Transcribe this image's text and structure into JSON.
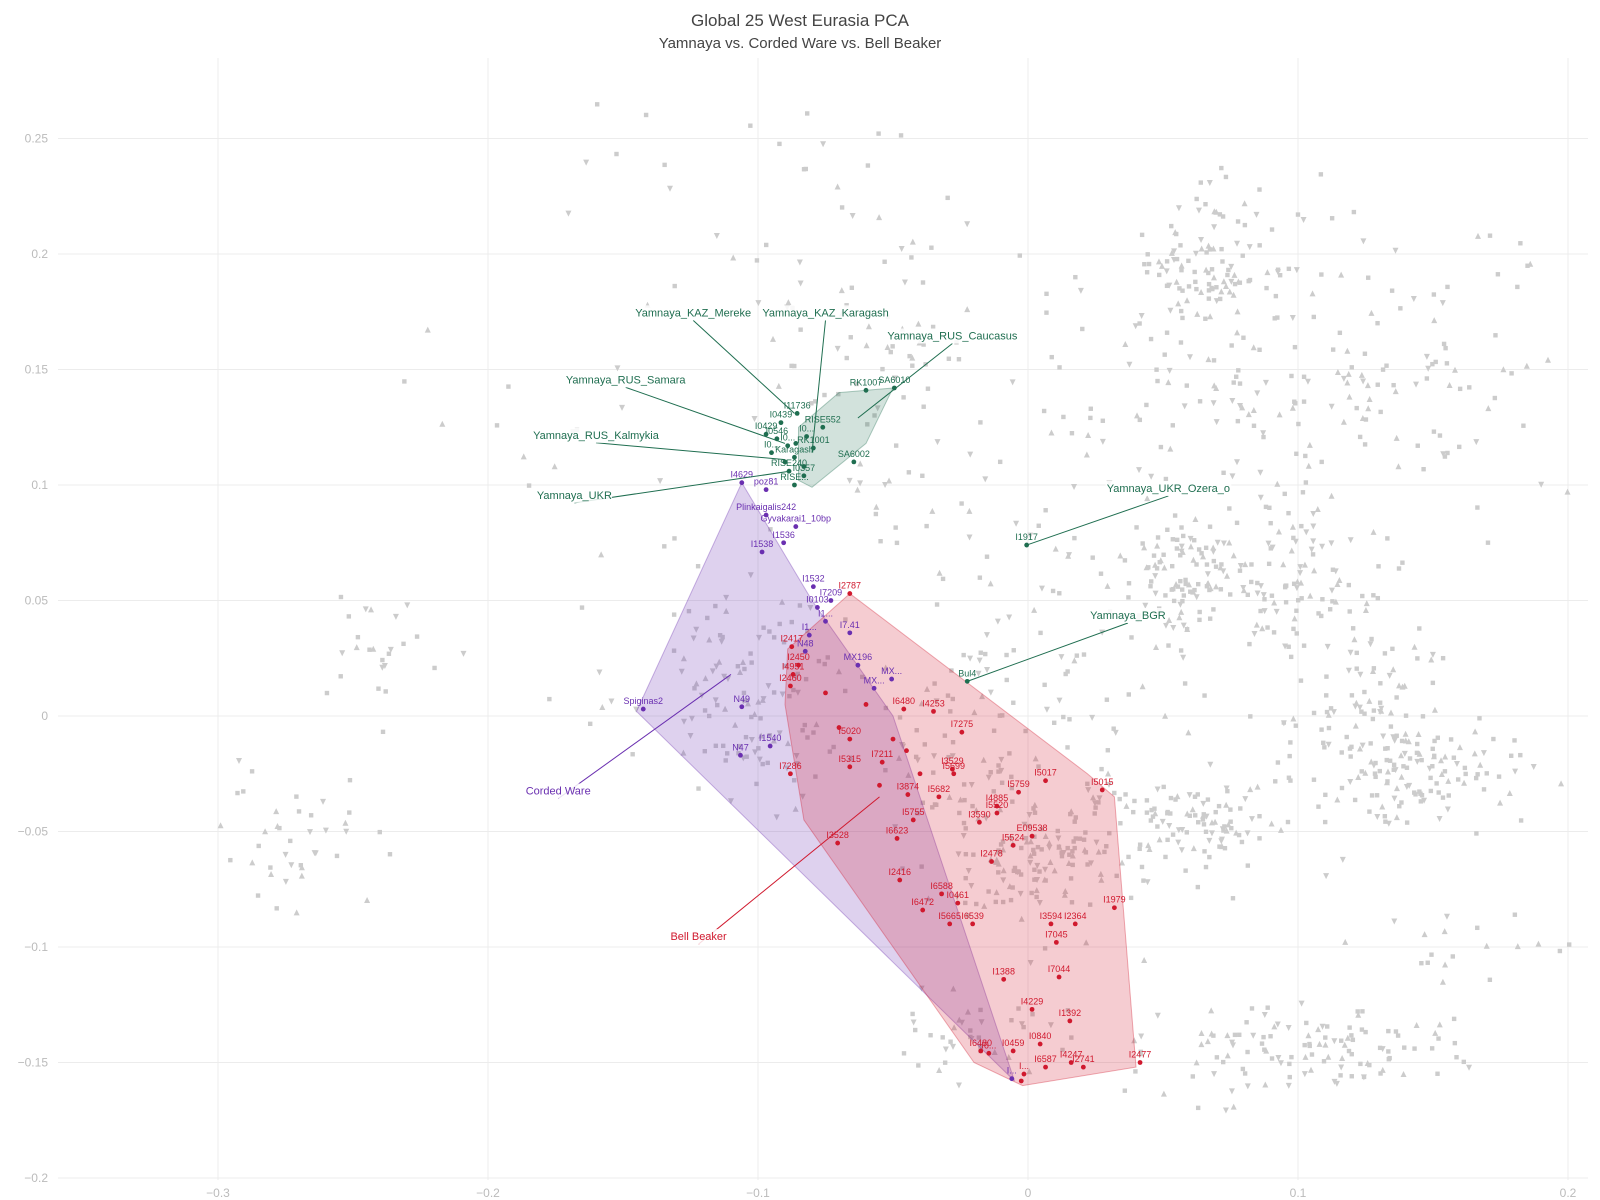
{
  "chart_data": {
    "type": "scatter",
    "title": "Global 25 West Eurasia PCA",
    "subtitle": "Yamnaya vs. Corded Ware vs. Bell Beaker",
    "xlabel": "",
    "ylabel": "",
    "xlim": [
      -0.37,
      0.21
    ],
    "ylim": [
      -0.2,
      0.285
    ],
    "x_ticks": [
      {
        "value": -0.3,
        "label": "−0.3"
      },
      {
        "value": -0.2,
        "label": "−0.2"
      },
      {
        "value": -0.1,
        "label": "−0.1"
      },
      {
        "value": 0,
        "label": "0"
      },
      {
        "value": 0.1,
        "label": "0.1"
      },
      {
        "value": 0.2,
        "label": "0.2"
      }
    ],
    "y_ticks": [
      {
        "value": 0.25,
        "label": "0.25"
      },
      {
        "value": 0.2,
        "label": "0.2"
      },
      {
        "value": 0.15,
        "label": "0.15"
      },
      {
        "value": 0.1,
        "label": "0.1"
      },
      {
        "value": 0.05,
        "label": "0.05"
      },
      {
        "value": 0,
        "label": "0"
      },
      {
        "value": -0.05,
        "label": "−0.05"
      },
      {
        "value": -0.1,
        "label": "−0.1"
      },
      {
        "value": -0.15,
        "label": "−0.15"
      },
      {
        "value": -0.2,
        "label": "−0.2"
      }
    ],
    "grid": true,
    "legend": "none",
    "colors": {
      "yamnaya": "#1f6e50",
      "corded_ware": "#6a2fb0",
      "bell_beaker": "#d0192e",
      "background": "#cccccc"
    },
    "background_clusters": [
      {
        "cx": 0.063,
        "cy": 0.19,
        "sx": 0.012,
        "sy": 0.013,
        "n": 80
      },
      {
        "cx": 0.12,
        "cy": 0.15,
        "sx": 0.03,
        "sy": 0.03,
        "n": 90
      },
      {
        "cx": 0.055,
        "cy": 0.14,
        "sx": 0.03,
        "sy": 0.03,
        "n": 70
      },
      {
        "cx": 0.055,
        "cy": 0.06,
        "sx": 0.012,
        "sy": 0.013,
        "n": 110
      },
      {
        "cx": 0.1,
        "cy": 0.06,
        "sx": 0.015,
        "sy": 0.02,
        "n": 100
      },
      {
        "cx": 0.125,
        "cy": 0.0,
        "sx": 0.015,
        "sy": 0.018,
        "n": 80
      },
      {
        "cx": 0.145,
        "cy": -0.025,
        "sx": 0.02,
        "sy": 0.01,
        "n": 110
      },
      {
        "cx": 0.06,
        "cy": -0.045,
        "sx": 0.02,
        "sy": 0.008,
        "n": 100
      },
      {
        "cx": 0.005,
        "cy": -0.06,
        "sx": 0.018,
        "sy": 0.012,
        "n": 110
      },
      {
        "cx": -0.02,
        "cy": -0.02,
        "sx": 0.02,
        "sy": 0.025,
        "n": 90
      },
      {
        "cx": -0.105,
        "cy": 0.02,
        "sx": 0.015,
        "sy": 0.015,
        "n": 60
      },
      {
        "cx": -0.095,
        "cy": -0.01,
        "sx": 0.015,
        "sy": 0.012,
        "n": 50
      },
      {
        "cx": 0.1,
        "cy": -0.145,
        "sx": 0.03,
        "sy": 0.01,
        "n": 120
      },
      {
        "cx": -0.02,
        "cy": -0.14,
        "sx": 0.015,
        "sy": 0.01,
        "n": 40
      },
      {
        "cx": -0.27,
        "cy": -0.055,
        "sx": 0.015,
        "sy": 0.015,
        "n": 40
      },
      {
        "cx": -0.24,
        "cy": 0.03,
        "sx": 0.012,
        "sy": 0.012,
        "n": 25
      },
      {
        "cx": -0.06,
        "cy": 0.16,
        "sx": 0.02,
        "sy": 0.015,
        "n": 40
      },
      {
        "cx": -0.03,
        "cy": 0.1,
        "sx": 0.03,
        "sy": 0.04,
        "n": 60
      },
      {
        "cx": 0.17,
        "cy": 0.15,
        "sx": 0.03,
        "sy": 0.04,
        "n": 30
      },
      {
        "cx": 0.165,
        "cy": -0.1,
        "sx": 0.02,
        "sy": 0.008,
        "n": 20
      },
      {
        "cx": -0.09,
        "cy": 0.22,
        "sx": 0.04,
        "sy": 0.03,
        "n": 40
      },
      {
        "cx": 0.09,
        "cy": 0.215,
        "sx": 0.02,
        "sy": 0.015,
        "n": 25
      },
      {
        "cx": -0.2,
        "cy": 0.12,
        "sx": 0.02,
        "sy": 0.02,
        "n": 10
      },
      {
        "cx": -0.13,
        "cy": 0.04,
        "sx": 0.02,
        "sy": 0.05,
        "n": 25
      },
      {
        "cx": 0.03,
        "cy": 0.0,
        "sx": 0.03,
        "sy": 0.06,
        "n": 60
      }
    ],
    "groups": [
      {
        "key": "yamnaya",
        "hull": [
          [
            -0.085,
            0.102
          ],
          [
            -0.085,
            0.125
          ],
          [
            -0.07,
            0.14
          ],
          [
            -0.05,
            0.142
          ],
          [
            -0.06,
            0.118
          ],
          [
            -0.08,
            0.099
          ]
        ],
        "points": [
          {
            "x": -0.0855,
            "y": 0.131,
            "label": "I11736"
          },
          {
            "x": -0.0915,
            "y": 0.127,
            "label": "I0439"
          },
          {
            "x": -0.097,
            "y": 0.122,
            "label": "I0429"
          },
          {
            "x": -0.093,
            "y": 0.12,
            "label": "I0546"
          },
          {
            "x": -0.089,
            "y": 0.117,
            "label": "I0..."
          },
          {
            "x": -0.095,
            "y": 0.114,
            "label": "I0..."
          },
          {
            "x": -0.0865,
            "y": 0.112,
            "label": "Karagash"
          },
          {
            "x": -0.076,
            "y": 0.125,
            "label": "RISE552"
          },
          {
            "x": -0.082,
            "y": 0.121,
            "label": "I0..."
          },
          {
            "x": -0.0795,
            "y": 0.116,
            "label": "RK1001"
          },
          {
            "x": -0.06,
            "y": 0.141,
            "label": "RK1007"
          },
          {
            "x": -0.0495,
            "y": 0.142,
            "label": "SA6010"
          },
          {
            "x": -0.0645,
            "y": 0.11,
            "label": "SA6002"
          },
          {
            "x": -0.0885,
            "y": 0.106,
            "label": "RISE240"
          },
          {
            "x": -0.083,
            "y": 0.104,
            "label": "I0357"
          },
          {
            "x": -0.0865,
            "y": 0.1,
            "label": "RISE..."
          },
          {
            "x": -0.086,
            "y": 0.118,
            "label": ""
          },
          {
            "x": -0.083,
            "y": 0.108,
            "label": ""
          },
          {
            "x": -0.09,
            "y": 0.11,
            "label": ""
          },
          {
            "x": -0.0005,
            "y": 0.074,
            "label": "I1917"
          },
          {
            "x": -0.0225,
            "y": 0.015,
            "label": "Bul4"
          }
        ],
        "group_labels": [
          {
            "text": "Yamnaya_KAZ_Mereke",
            "x": -0.124,
            "y": 0.173,
            "tx": -0.0865,
            "ty": 0.131
          },
          {
            "text": "Yamnaya_KAZ_Karagash",
            "x": -0.075,
            "y": 0.173,
            "tx": -0.08,
            "ty": 0.114
          },
          {
            "text": "Yamnaya_RUS_Caucasus",
            "x": -0.028,
            "y": 0.163,
            "tx": -0.063,
            "ty": 0.129
          },
          {
            "text": "Yamnaya_RUS_Samara",
            "x": -0.149,
            "y": 0.144,
            "tx": -0.09,
            "ty": 0.118
          },
          {
            "text": "Yamnaya_RUS_Kalmykia",
            "x": -0.16,
            "y": 0.12,
            "tx": -0.09,
            "ty": 0.111
          },
          {
            "text": "Yamnaya_UKR",
            "x": -0.168,
            "y": 0.094,
            "tx": -0.088,
            "ty": 0.106
          },
          {
            "text": "Yamnaya_UKR_Ozera_o",
            "x": 0.052,
            "y": 0.097,
            "tx": -0.0005,
            "ty": 0.074
          },
          {
            "text": "Yamnaya_BGR",
            "x": 0.037,
            "y": 0.042,
            "tx": -0.0225,
            "ty": 0.015
          }
        ]
      },
      {
        "key": "corded_ware",
        "hull": [
          [
            -0.106,
            0.101
          ],
          [
            -0.145,
            0.002
          ],
          [
            -0.005,
            -0.158
          ],
          [
            -0.05,
            0.0
          ],
          [
            -0.08,
            0.05
          ]
        ],
        "points": [
          {
            "x": -0.106,
            "y": 0.101,
            "label": "I4629"
          },
          {
            "x": -0.097,
            "y": 0.098,
            "label": "poz81"
          },
          {
            "x": -0.097,
            "y": 0.087,
            "label": "Plinkaigalis242"
          },
          {
            "x": -0.086,
            "y": 0.082,
            "label": "Gyvakarai1_10bp"
          },
          {
            "x": -0.0905,
            "y": 0.075,
            "label": "I1536"
          },
          {
            "x": -0.0985,
            "y": 0.071,
            "label": "I1538"
          },
          {
            "x": -0.0795,
            "y": 0.056,
            "label": "I1532"
          },
          {
            "x": -0.073,
            "y": 0.05,
            "label": "I7209"
          },
          {
            "x": -0.078,
            "y": 0.047,
            "label": "I0103"
          },
          {
            "x": -0.075,
            "y": 0.041,
            "label": "I1..."
          },
          {
            "x": -0.066,
            "y": 0.036,
            "label": "I7.41"
          },
          {
            "x": -0.081,
            "y": 0.035,
            "label": "I1..."
          },
          {
            "x": -0.0825,
            "y": 0.028,
            "label": "N48"
          },
          {
            "x": -0.063,
            "y": 0.022,
            "label": "MX196"
          },
          {
            "x": -0.0505,
            "y": 0.016,
            "label": "MX..."
          },
          {
            "x": -0.057,
            "y": 0.012,
            "label": "MX..."
          },
          {
            "x": -0.106,
            "y": 0.004,
            "label": "N49"
          },
          {
            "x": -0.1425,
            "y": 0.003,
            "label": "Spiginas2"
          },
          {
            "x": -0.1065,
            "y": -0.017,
            "label": "N47"
          },
          {
            "x": -0.0955,
            "y": -0.013,
            "label": "I1540"
          },
          {
            "x": -0.006,
            "y": -0.157,
            "label": "I..."
          }
        ],
        "group_labels": [
          {
            "text": "Corded Ware",
            "x": -0.174,
            "y": -0.034,
            "tx": -0.11,
            "ty": 0.018
          }
        ]
      },
      {
        "key": "bell_beaker",
        "hull": [
          [
            -0.066,
            0.053
          ],
          [
            -0.089,
            0.029
          ],
          [
            -0.09,
            0.005
          ],
          [
            -0.083,
            -0.045
          ],
          [
            -0.02,
            -0.15
          ],
          [
            -0.002,
            -0.16
          ],
          [
            0.04,
            -0.152
          ],
          [
            0.032,
            -0.035
          ],
          [
            0.022,
            -0.025
          ]
        ],
        "points": [
          {
            "x": -0.066,
            "y": 0.053,
            "label": "I2787"
          },
          {
            "x": -0.0875,
            "y": 0.03,
            "label": "I2417"
          },
          {
            "x": -0.085,
            "y": 0.022,
            "label": "I2450"
          },
          {
            "x": -0.087,
            "y": 0.018,
            "label": "I4951"
          },
          {
            "x": -0.088,
            "y": 0.013,
            "label": "I2460"
          },
          {
            "x": -0.046,
            "y": 0.003,
            "label": "I6480"
          },
          {
            "x": -0.035,
            "y": 0.002,
            "label": "I4253"
          },
          {
            "x": -0.0245,
            "y": -0.007,
            "label": "I7275"
          },
          {
            "x": -0.066,
            "y": -0.01,
            "label": "I5020"
          },
          {
            "x": -0.088,
            "y": -0.025,
            "label": "I7286"
          },
          {
            "x": -0.066,
            "y": -0.022,
            "label": "I5315"
          },
          {
            "x": -0.054,
            "y": -0.02,
            "label": "I7211"
          },
          {
            "x": -0.028,
            "y": -0.023,
            "label": "I3529"
          },
          {
            "x": -0.0275,
            "y": -0.025,
            "label": "I5699"
          },
          {
            "x": -0.0445,
            "y": -0.034,
            "label": "I3874"
          },
          {
            "x": -0.0425,
            "y": -0.045,
            "label": "I5755"
          },
          {
            "x": -0.033,
            "y": -0.035,
            "label": "I5682"
          },
          {
            "x": -0.0705,
            "y": -0.055,
            "label": "I3528"
          },
          {
            "x": -0.0485,
            "y": -0.053,
            "label": "I6623"
          },
          {
            "x": -0.0035,
            "y": -0.033,
            "label": "I5759"
          },
          {
            "x": 0.0065,
            "y": -0.028,
            "label": "I5017"
          },
          {
            "x": 0.0275,
            "y": -0.032,
            "label": "I5015"
          },
          {
            "x": -0.0115,
            "y": -0.039,
            "label": "I4885"
          },
          {
            "x": -0.018,
            "y": -0.046,
            "label": "I3590"
          },
          {
            "x": -0.0115,
            "y": -0.042,
            "label": "I5520"
          },
          {
            "x": 0.0015,
            "y": -0.052,
            "label": "E09538"
          },
          {
            "x": -0.0055,
            "y": -0.056,
            "label": "I5524"
          },
          {
            "x": -0.0135,
            "y": -0.063,
            "label": "I2478"
          },
          {
            "x": -0.0475,
            "y": -0.071,
            "label": "I2416"
          },
          {
            "x": -0.032,
            "y": -0.077,
            "label": "I6588"
          },
          {
            "x": -0.026,
            "y": -0.081,
            "label": "I0461"
          },
          {
            "x": -0.039,
            "y": -0.084,
            "label": "I6472"
          },
          {
            "x": -0.029,
            "y": -0.09,
            "label": "I5665"
          },
          {
            "x": -0.0205,
            "y": -0.09,
            "label": "I6539"
          },
          {
            "x": 0.032,
            "y": -0.083,
            "label": "I1979"
          },
          {
            "x": 0.0085,
            "y": -0.09,
            "label": "I3594"
          },
          {
            "x": 0.0175,
            "y": -0.09,
            "label": "I2364"
          },
          {
            "x": 0.0105,
            "y": -0.098,
            "label": "I7045"
          },
          {
            "x": -0.009,
            "y": -0.114,
            "label": "I1388"
          },
          {
            "x": 0.0115,
            "y": -0.113,
            "label": "I7044"
          },
          {
            "x": 0.0015,
            "y": -0.127,
            "label": "I4229"
          },
          {
            "x": 0.0155,
            "y": -0.132,
            "label": "I1392"
          },
          {
            "x": 0.0045,
            "y": -0.142,
            "label": "I0840"
          },
          {
            "x": -0.0175,
            "y": -0.145,
            "label": "I6480"
          },
          {
            "x": -0.0055,
            "y": -0.145,
            "label": "I0459"
          },
          {
            "x": -0.0145,
            "y": -0.146,
            "label": "I6..."
          },
          {
            "x": 0.0065,
            "y": -0.152,
            "label": "I6587"
          },
          {
            "x": 0.016,
            "y": -0.15,
            "label": "I4247"
          },
          {
            "x": 0.0205,
            "y": -0.152,
            "label": "I2741"
          },
          {
            "x": 0.0415,
            "y": -0.15,
            "label": "I2477"
          },
          {
            "x": -0.0015,
            "y": -0.155,
            "label": "I..."
          },
          {
            "x": -0.0025,
            "y": -0.158,
            "label": ""
          },
          {
            "x": -0.05,
            "y": -0.01,
            "label": ""
          },
          {
            "x": -0.045,
            "y": -0.015,
            "label": ""
          },
          {
            "x": -0.06,
            "y": 0.005,
            "label": ""
          },
          {
            "x": -0.075,
            "y": 0.01,
            "label": ""
          },
          {
            "x": -0.07,
            "y": -0.005,
            "label": ""
          },
          {
            "x": -0.04,
            "y": -0.025,
            "label": ""
          },
          {
            "x": -0.055,
            "y": -0.03,
            "label": ""
          }
        ],
        "group_labels": [
          {
            "text": "Bell Beaker",
            "x": -0.122,
            "y": -0.097,
            "tx": -0.055,
            "ty": -0.035
          }
        ]
      }
    ]
  }
}
